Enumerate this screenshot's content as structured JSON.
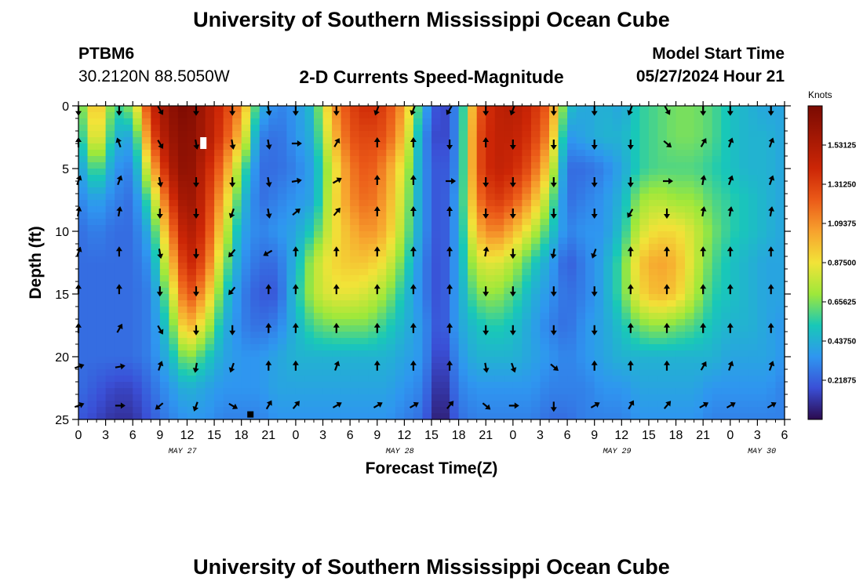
{
  "header": {
    "title": "University of Southern Mississippi Ocean Cube",
    "station": "PTBM6",
    "coords": "30.2120N  88.5050W",
    "chart_title": "2-D Currents Speed-Magnitude",
    "model_start_label": "Model Start Time",
    "model_start_value": "05/27/2024 Hour 21"
  },
  "footer": {
    "title": "University of Southern Mississippi Ocean Cube"
  },
  "chart_data": {
    "type": "heatmap",
    "title": "2-D Currents Speed-Magnitude",
    "xlabel": "Forecast Time(Z)",
    "ylabel": "Depth (ft)",
    "xlim": [
      0,
      78
    ],
    "ylim": [
      0,
      25
    ],
    "x_ticks": [
      0,
      3,
      6,
      9,
      12,
      15,
      18,
      21,
      24,
      27,
      30,
      33,
      36,
      39,
      42,
      45,
      48,
      51,
      54,
      57,
      60,
      63,
      66,
      69,
      72,
      75,
      78
    ],
    "x_tick_labels": [
      "0",
      "3",
      "6",
      "9",
      "12",
      "15",
      "18",
      "21",
      "0",
      "3",
      "6",
      "9",
      "12",
      "15",
      "18",
      "21",
      "0",
      "3",
      "6",
      "9",
      "12",
      "15",
      "18",
      "21",
      "0",
      "3",
      "6"
    ],
    "y_ticks": [
      0,
      5,
      10,
      15,
      20,
      25
    ],
    "y_tick_labels": [
      "0",
      "5",
      "10",
      "15",
      "20",
      "25"
    ],
    "date_labels": [
      {
        "text": "MAY 27",
        "hour": 11.5
      },
      {
        "text": "MAY 28",
        "hour": 35.5
      },
      {
        "text": "MAY 29",
        "hour": 59.5
      },
      {
        "text": "MAY 30",
        "hour": 75.5
      }
    ],
    "colorbar": {
      "unit": "Knots",
      "min": 0.0,
      "max": 1.75,
      "tick_values": [
        0.21875,
        0.4375,
        0.65625,
        0.875,
        1.09375,
        1.3125,
        1.53125
      ],
      "tick_labels": [
        "0.21875",
        "0.43750",
        "0.65625",
        "0.87500",
        "1.09375",
        "1.31250",
        "1.53125"
      ]
    },
    "speed_field": {
      "hours": [
        0,
        2,
        4,
        6,
        8,
        10,
        12,
        14,
        16,
        18,
        20,
        22,
        24,
        26,
        28,
        30,
        32,
        34,
        36,
        38,
        40,
        42,
        44,
        46,
        48,
        50,
        52,
        54,
        56,
        58,
        60,
        62,
        64,
        66,
        68,
        70,
        72,
        74,
        76,
        78
      ],
      "depths": [
        0,
        2.5,
        5,
        7.5,
        10,
        12.5,
        15,
        17.5,
        20,
        22.5,
        25
      ],
      "rows": [
        [
          0.55,
          1.05,
          0.55,
          0.7,
          1.4,
          1.65,
          1.75,
          1.55,
          1.35,
          1.1,
          0.45,
          0.3,
          0.35,
          0.5,
          1.05,
          1.3,
          1.4,
          1.3,
          1.05,
          0.45,
          0.1,
          0.35,
          1.2,
          1.45,
          1.5,
          1.4,
          1.2,
          0.5,
          0.4,
          0.45,
          0.4,
          0.55,
          0.6,
          0.65,
          0.65,
          0.6,
          0.5,
          0.45,
          0.4,
          0.4
        ],
        [
          0.45,
          0.95,
          0.45,
          0.4,
          1.25,
          1.6,
          1.7,
          1.55,
          1.3,
          0.95,
          0.3,
          0.25,
          0.35,
          0.45,
          0.95,
          1.25,
          1.3,
          1.25,
          0.95,
          0.35,
          0.1,
          0.35,
          1.25,
          1.45,
          1.45,
          1.35,
          1.1,
          0.35,
          0.4,
          0.45,
          0.45,
          0.55,
          0.6,
          0.65,
          0.65,
          0.6,
          0.5,
          0.45,
          0.45,
          0.4
        ],
        [
          0.35,
          0.65,
          0.35,
          0.3,
          0.95,
          1.5,
          1.7,
          1.45,
          1.15,
          0.65,
          0.25,
          0.25,
          0.3,
          0.4,
          0.8,
          1.15,
          1.25,
          1.1,
          0.8,
          0.35,
          0.15,
          0.35,
          1.25,
          1.45,
          1.4,
          1.25,
          0.9,
          0.25,
          0.25,
          0.3,
          0.4,
          0.55,
          0.6,
          0.6,
          0.6,
          0.55,
          0.5,
          0.45,
          0.45,
          0.4
        ],
        [
          0.3,
          0.4,
          0.3,
          0.25,
          0.65,
          1.3,
          1.65,
          1.4,
          1.0,
          0.5,
          0.25,
          0.3,
          0.35,
          0.4,
          0.85,
          1.1,
          1.2,
          1.05,
          0.75,
          0.35,
          0.15,
          0.4,
          1.15,
          1.35,
          1.25,
          1.05,
          0.7,
          0.25,
          0.3,
          0.35,
          0.45,
          0.7,
          0.75,
          0.7,
          0.7,
          0.6,
          0.55,
          0.5,
          0.45,
          0.4
        ],
        [
          0.25,
          0.3,
          0.25,
          0.25,
          0.45,
          1.1,
          1.55,
          1.35,
          0.85,
          0.4,
          0.3,
          0.35,
          0.4,
          0.55,
          0.85,
          1.0,
          1.1,
          1.0,
          0.7,
          0.35,
          0.15,
          0.4,
          1.0,
          1.15,
          1.0,
          0.8,
          0.55,
          0.3,
          0.35,
          0.35,
          0.5,
          0.8,
          0.9,
          0.9,
          0.8,
          0.65,
          0.55,
          0.5,
          0.45,
          0.4
        ],
        [
          0.25,
          0.25,
          0.25,
          0.25,
          0.35,
          0.9,
          1.45,
          1.25,
          0.7,
          0.35,
          0.25,
          0.25,
          0.45,
          0.75,
          0.9,
          0.95,
          0.95,
          0.85,
          0.6,
          0.3,
          0.15,
          0.4,
          0.8,
          0.85,
          0.75,
          0.55,
          0.4,
          0.2,
          0.3,
          0.4,
          0.6,
          0.95,
          1.05,
          1.0,
          0.8,
          0.6,
          0.5,
          0.45,
          0.4,
          0.4
        ],
        [
          0.25,
          0.25,
          0.25,
          0.25,
          0.3,
          0.7,
          1.3,
          1.05,
          0.55,
          0.3,
          0.2,
          0.2,
          0.5,
          0.75,
          0.85,
          0.85,
          0.8,
          0.7,
          0.5,
          0.3,
          0.15,
          0.4,
          0.65,
          0.7,
          0.6,
          0.45,
          0.35,
          0.25,
          0.3,
          0.4,
          0.6,
          0.9,
          1.0,
          0.95,
          0.75,
          0.55,
          0.5,
          0.45,
          0.4,
          0.4
        ],
        [
          0.25,
          0.25,
          0.25,
          0.25,
          0.3,
          0.55,
          1.05,
          0.8,
          0.45,
          0.3,
          0.25,
          0.3,
          0.45,
          0.6,
          0.65,
          0.65,
          0.65,
          0.55,
          0.45,
          0.35,
          0.15,
          0.4,
          0.5,
          0.55,
          0.5,
          0.4,
          0.3,
          0.25,
          0.35,
          0.4,
          0.5,
          0.65,
          0.7,
          0.65,
          0.6,
          0.5,
          0.45,
          0.45,
          0.4,
          0.35
        ],
        [
          0.25,
          0.25,
          0.25,
          0.25,
          0.3,
          0.45,
          0.7,
          0.55,
          0.4,
          0.35,
          0.35,
          0.4,
          0.45,
          0.45,
          0.45,
          0.45,
          0.45,
          0.45,
          0.4,
          0.35,
          0.1,
          0.35,
          0.45,
          0.45,
          0.45,
          0.4,
          0.35,
          0.3,
          0.35,
          0.4,
          0.45,
          0.45,
          0.45,
          0.45,
          0.45,
          0.45,
          0.4,
          0.4,
          0.4,
          0.35
        ],
        [
          0.25,
          0.2,
          0.15,
          0.15,
          0.25,
          0.35,
          0.45,
          0.4,
          0.35,
          0.35,
          0.35,
          0.4,
          0.4,
          0.4,
          0.4,
          0.4,
          0.4,
          0.4,
          0.35,
          0.3,
          0.05,
          0.3,
          0.35,
          0.35,
          0.35,
          0.35,
          0.3,
          0.3,
          0.3,
          0.35,
          0.35,
          0.4,
          0.4,
          0.4,
          0.4,
          0.35,
          0.35,
          0.35,
          0.35,
          0.3
        ],
        [
          0.2,
          0.15,
          0.1,
          0.1,
          0.2,
          0.3,
          0.35,
          0.35,
          0.3,
          0.3,
          0.3,
          0.35,
          0.35,
          0.35,
          0.35,
          0.35,
          0.35,
          0.35,
          0.3,
          0.25,
          0.0,
          0.25,
          0.3,
          0.3,
          0.3,
          0.3,
          0.25,
          0.25,
          0.3,
          0.3,
          0.3,
          0.35,
          0.35,
          0.35,
          0.35,
          0.3,
          0.3,
          0.3,
          0.3,
          0.3
        ]
      ]
    },
    "vectors": {
      "hours": [
        0,
        4.5,
        9,
        13,
        17,
        21,
        24,
        28.5,
        33,
        37,
        41,
        45,
        48,
        52.5,
        57,
        61,
        65,
        69,
        72,
        76.5
      ],
      "depths": [
        0.3,
        3,
        6,
        8.5,
        11.7,
        14.7,
        17.8,
        20.8,
        23.9
      ],
      "dirs_deg": [
        [
          180,
          180,
          150,
          180,
          180,
          170,
          180,
          180,
          200,
          200,
          210,
          180,
          200,
          180,
          180,
          200,
          150,
          180,
          180,
          180
        ],
        [
          0,
          340,
          150,
          170,
          170,
          170,
          90,
          30,
          0,
          0,
          180,
          0,
          180,
          180,
          180,
          180,
          130,
          30,
          20,
          20
        ],
        [
          20,
          20,
          170,
          180,
          180,
          170,
          80,
          60,
          0,
          0,
          90,
          180,
          180,
          180,
          180,
          180,
          90,
          10,
          20,
          20
        ],
        [
          10,
          10,
          180,
          180,
          200,
          170,
          50,
          40,
          0,
          0,
          0,
          180,
          180,
          180,
          180,
          210,
          180,
          10,
          10,
          10
        ],
        [
          20,
          0,
          170,
          180,
          220,
          240,
          0,
          0,
          0,
          0,
          0,
          10,
          180,
          190,
          200,
          0,
          0,
          0,
          0,
          0
        ],
        [
          0,
          0,
          180,
          180,
          220,
          0,
          0,
          0,
          0,
          0,
          0,
          180,
          180,
          180,
          180,
          0,
          0,
          0,
          0,
          0
        ],
        [
          0,
          30,
          150,
          180,
          180,
          0,
          0,
          0,
          0,
          0,
          0,
          180,
          180,
          180,
          180,
          0,
          0,
          0,
          0,
          0
        ],
        [
          70,
          80,
          20,
          190,
          200,
          0,
          0,
          20,
          0,
          0,
          0,
          170,
          160,
          130,
          0,
          0,
          0,
          30,
          20,
          20
        ],
        [
          70,
          90,
          230,
          200,
          120,
          30,
          40,
          60,
          60,
          60,
          40,
          130,
          90,
          180,
          60,
          30,
          40,
          60,
          60,
          60
        ]
      ]
    },
    "annotations": [
      {
        "hour": 13.8,
        "depth": 3.0,
        "text": "white-marker"
      },
      {
        "hour": 19.0,
        "depth": 24.6,
        "text": "black-marker"
      }
    ]
  }
}
